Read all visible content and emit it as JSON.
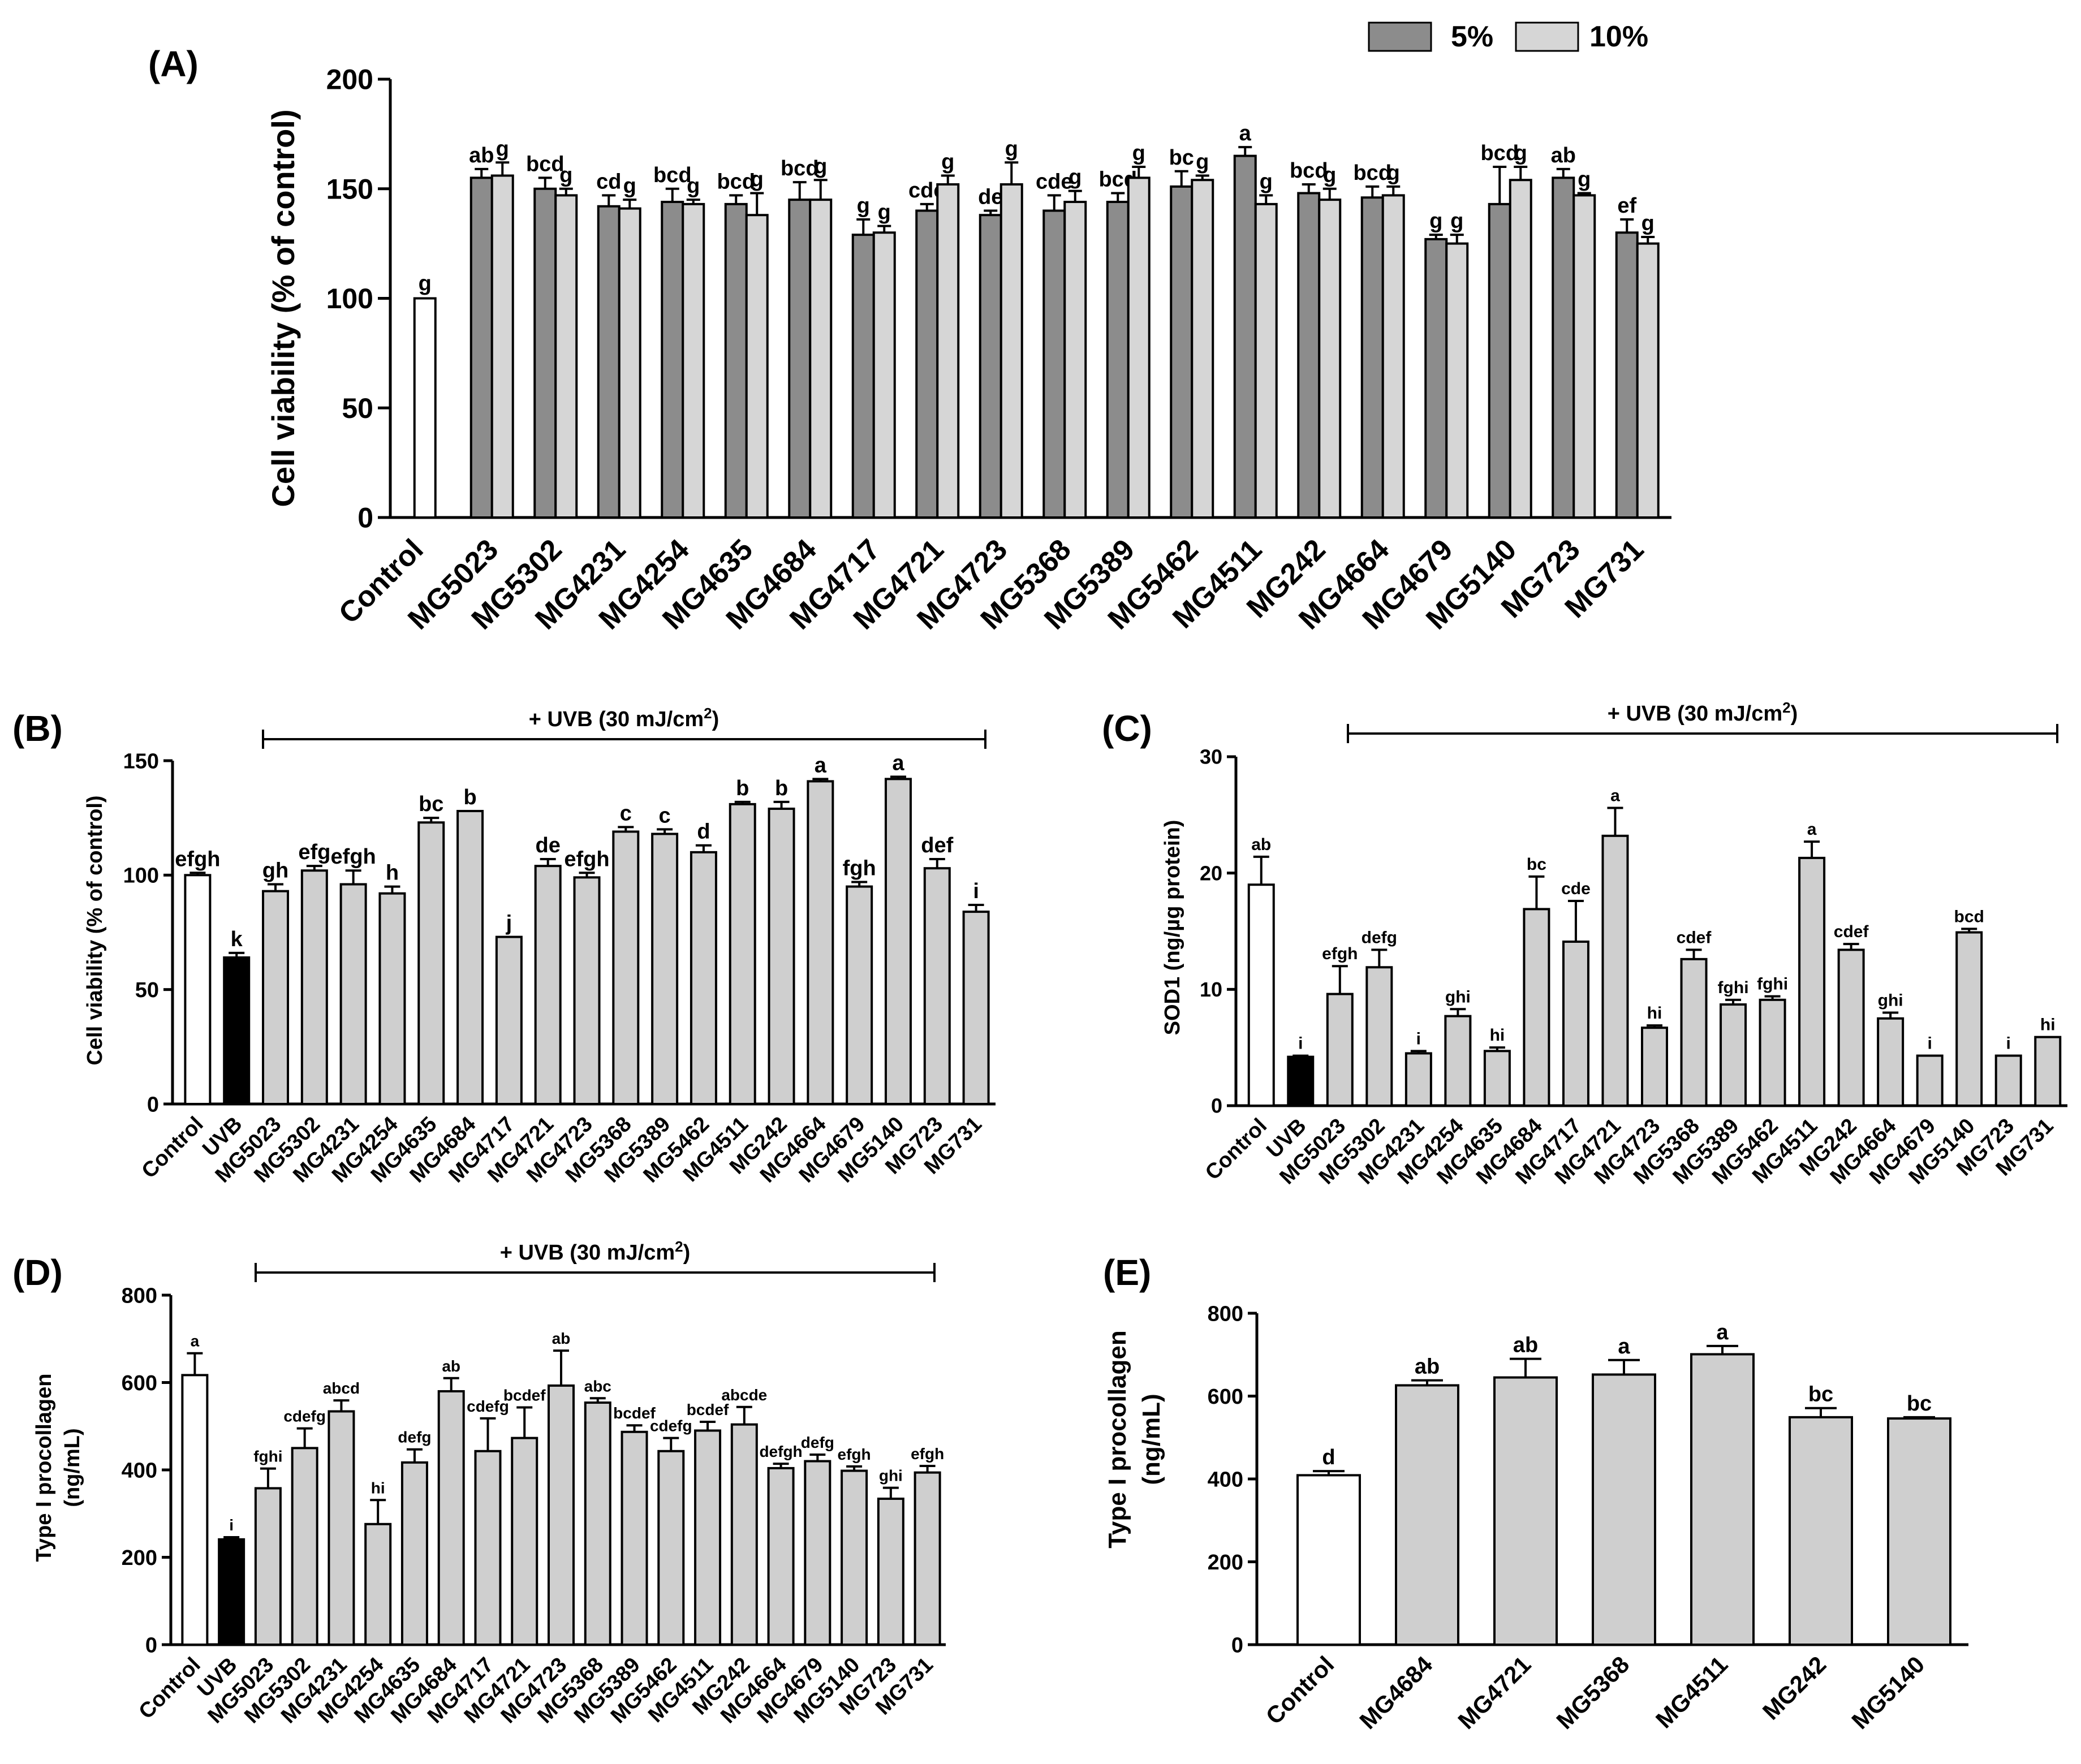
{
  "colors": {
    "control_fill": "#ffffff",
    "uvb_fill": "#000000",
    "dark_gray": "#8c8c8c",
    "light_gray": "#d6d6d6",
    "sample_gray": "#cfcfcf",
    "stroke": "#000000"
  },
  "chart_data": [
    {
      "id": "A",
      "panel_label": "(A)",
      "type": "bar",
      "title": "",
      "xlabel": "",
      "ylabel": "Cell viability (% of control)",
      "ylim": [
        0,
        200
      ],
      "yticks": [
        "0",
        "50",
        "100",
        "150",
        "200"
      ],
      "legend": {
        "position": "top-right",
        "entries": [
          "5%",
          "10%"
        ]
      },
      "categories": [
        "Control",
        "MG5023",
        "MG5302",
        "MG4231",
        "MG4254",
        "MG4635",
        "MG4684",
        "MG4717",
        "MG4721",
        "MG4723",
        "MG5368",
        "MG5389",
        "MG5462",
        "MG4511",
        "MG242",
        "MG4664",
        "MG4679",
        "MG5140",
        "MG723",
        "MG731"
      ],
      "series": [
        {
          "name": "5%",
          "values": [
            100,
            155,
            150,
            142,
            144,
            143,
            145,
            129,
            140,
            138,
            140,
            144,
            151,
            165,
            148,
            146,
            127,
            143,
            155,
            130
          ],
          "errors": [
            0,
            4,
            5,
            5,
            6,
            4,
            8,
            7,
            3,
            2,
            7,
            4,
            7,
            4,
            4,
            5,
            2,
            17,
            4,
            6
          ],
          "letters": [
            "g",
            "ab",
            "bcd",
            "cd",
            "bcd",
            "bcd",
            "bcd",
            "g",
            "cde",
            "de",
            "cde",
            "bcd",
            "bc",
            "a",
            "bcd",
            "bcd",
            "g",
            "bcd",
            "ab",
            "ef"
          ]
        },
        {
          "name": "10%",
          "values": [
            null,
            156,
            147,
            141,
            143,
            138,
            145,
            130,
            152,
            152,
            144,
            155,
            154,
            143,
            145,
            147,
            125,
            154,
            147,
            125
          ],
          "errors": [
            null,
            6,
            3,
            4,
            2,
            10,
            9,
            3,
            4,
            10,
            5,
            5,
            2,
            4,
            5,
            4,
            4,
            6,
            1,
            3
          ],
          "letters": [
            null,
            "g",
            "g",
            "g",
            "g",
            "g",
            "g",
            "g",
            "g",
            "g",
            "g",
            "g",
            "g",
            "g",
            "g",
            "g",
            "g",
            "g",
            "g",
            "g"
          ]
        }
      ]
    },
    {
      "id": "B",
      "panel_label": "(B)",
      "type": "bar",
      "ylabel": "Cell viability (% of control)",
      "ylim": [
        0,
        150
      ],
      "yticks": [
        "0",
        "50",
        "100",
        "150"
      ],
      "treatment_label": "+ UVB (30 mJ/cm",
      "treatment_sup": "2",
      "treatment_close": ")",
      "categories": [
        "Control",
        "UVB",
        "MG5023",
        "MG5302",
        "MG4231",
        "MG4254",
        "MG4635",
        "MG4684",
        "MG4717",
        "MG4721",
        "MG4723",
        "MG5368",
        "MG5389",
        "MG5462",
        "MG4511",
        "MG242",
        "MG4664",
        "MG4679",
        "MG5140",
        "MG723",
        "MG731"
      ],
      "values": [
        100,
        64,
        93,
        102,
        96,
        92,
        123,
        128,
        73,
        104,
        99,
        119,
        118,
        110,
        131,
        129,
        141,
        95,
        142,
        103,
        84
      ],
      "errors": [
        1,
        2,
        3,
        2,
        6,
        3,
        2,
        0,
        0,
        3,
        2,
        2,
        2,
        3,
        1,
        3,
        1,
        2,
        1,
        4,
        3
      ],
      "letters": [
        "efgh",
        "k",
        "gh",
        "efg",
        "efgh",
        "h",
        "bc",
        "b",
        "j",
        "de",
        "efgh",
        "c",
        "c",
        "d",
        "b",
        "b",
        "a",
        "fgh",
        "a",
        "def",
        "i"
      ]
    },
    {
      "id": "C",
      "panel_label": "(C)",
      "type": "bar",
      "ylabel": "SOD1 (ng/µg protein)",
      "ylim": [
        0,
        30
      ],
      "yticks": [
        "0",
        "10",
        "20",
        "30"
      ],
      "treatment_label": "+ UVB (30 mJ/cm",
      "treatment_sup": "2",
      "treatment_close": ")",
      "categories": [
        "Control",
        "UVB",
        "MG5023",
        "MG5302",
        "MG4231",
        "MG4254",
        "MG4635",
        "MG4684",
        "MG4717",
        "MG4721",
        "MG4723",
        "MG5368",
        "MG5389",
        "MG5462",
        "MG4511",
        "MG242",
        "MG4664",
        "MG4679",
        "MG5140",
        "MG723",
        "MG731"
      ],
      "values": [
        19,
        4.2,
        9.6,
        11.9,
        4.5,
        7.7,
        4.7,
        16.9,
        14.1,
        23.2,
        6.7,
        12.6,
        8.7,
        9.1,
        21.3,
        13.4,
        7.5,
        4.3,
        14.9,
        4.3,
        5.9
      ],
      "errors": [
        2.4,
        0.1,
        2.4,
        1.5,
        0.2,
        0.6,
        0.3,
        2.8,
        3.5,
        2.4,
        0.2,
        0.8,
        0.4,
        0.3,
        1.4,
        0.5,
        0.5,
        0,
        0.3,
        0,
        0
      ],
      "letters": [
        "ab",
        "i",
        "efgh",
        "defg",
        "i",
        "ghi",
        "hi",
        "bc",
        "cde",
        "a",
        "hi",
        "cdef",
        "fghi",
        "fghi",
        "a",
        "cdef",
        "ghi",
        "i",
        "bcd",
        "i",
        "hi"
      ]
    },
    {
      "id": "D",
      "panel_label": "(D)",
      "type": "bar",
      "ylabel": "Type I procollagen",
      "ylabel2": "(ng/mL)",
      "ylim": [
        0,
        800
      ],
      "yticks": [
        "0",
        "200",
        "400",
        "600",
        "800"
      ],
      "treatment_label": "+ UVB (30 mJ/cm",
      "treatment_sup": "2",
      "treatment_close": ")",
      "categories": [
        "Control",
        "UVB",
        "MG5023",
        "MG5302",
        "MG4231",
        "MG4254",
        "MG4635",
        "MG4684",
        "MG4717",
        "MG4721",
        "MG4723",
        "MG5368",
        "MG5389",
        "MG5462",
        "MG4511",
        "MG242",
        "MG4664",
        "MG4679",
        "MG5140",
        "MG723",
        "MG731"
      ],
      "values": [
        617,
        241,
        358,
        450,
        534,
        276,
        417,
        580,
        443,
        473,
        593,
        554,
        487,
        443,
        490,
        504,
        404,
        420,
        398,
        334,
        394
      ],
      "errors": [
        50,
        5,
        45,
        45,
        25,
        55,
        30,
        30,
        75,
        70,
        80,
        10,
        15,
        30,
        20,
        40,
        10,
        15,
        10,
        25,
        15
      ],
      "letters": [
        "a",
        "i",
        "fghi",
        "cdefg",
        "abcd",
        "hi",
        "defg",
        "ab",
        "cdefg",
        "bcdef",
        "ab",
        "abc",
        "bcdef",
        "cdefg",
        "bcdef",
        "abcde",
        "defgh",
        "defg",
        "efgh",
        "ghi",
        "efgh"
      ]
    },
    {
      "id": "E",
      "panel_label": "(E)",
      "type": "bar",
      "ylabel": "Type I procollagen",
      "ylabel2": "(ng/mL)",
      "ylim": [
        0,
        800
      ],
      "yticks": [
        "0",
        "200",
        "400",
        "600",
        "800"
      ],
      "categories": [
        "Control",
        "MG4684",
        "MG4721",
        "MG5368",
        "MG4511",
        "MG242",
        "MG5140"
      ],
      "values": [
        409,
        626,
        645,
        652,
        701,
        549,
        546
      ],
      "errors": [
        10,
        12,
        45,
        35,
        20,
        22,
        3
      ],
      "letters": [
        "d",
        "ab",
        "ab",
        "a",
        "a",
        "bc",
        "bc"
      ]
    }
  ]
}
